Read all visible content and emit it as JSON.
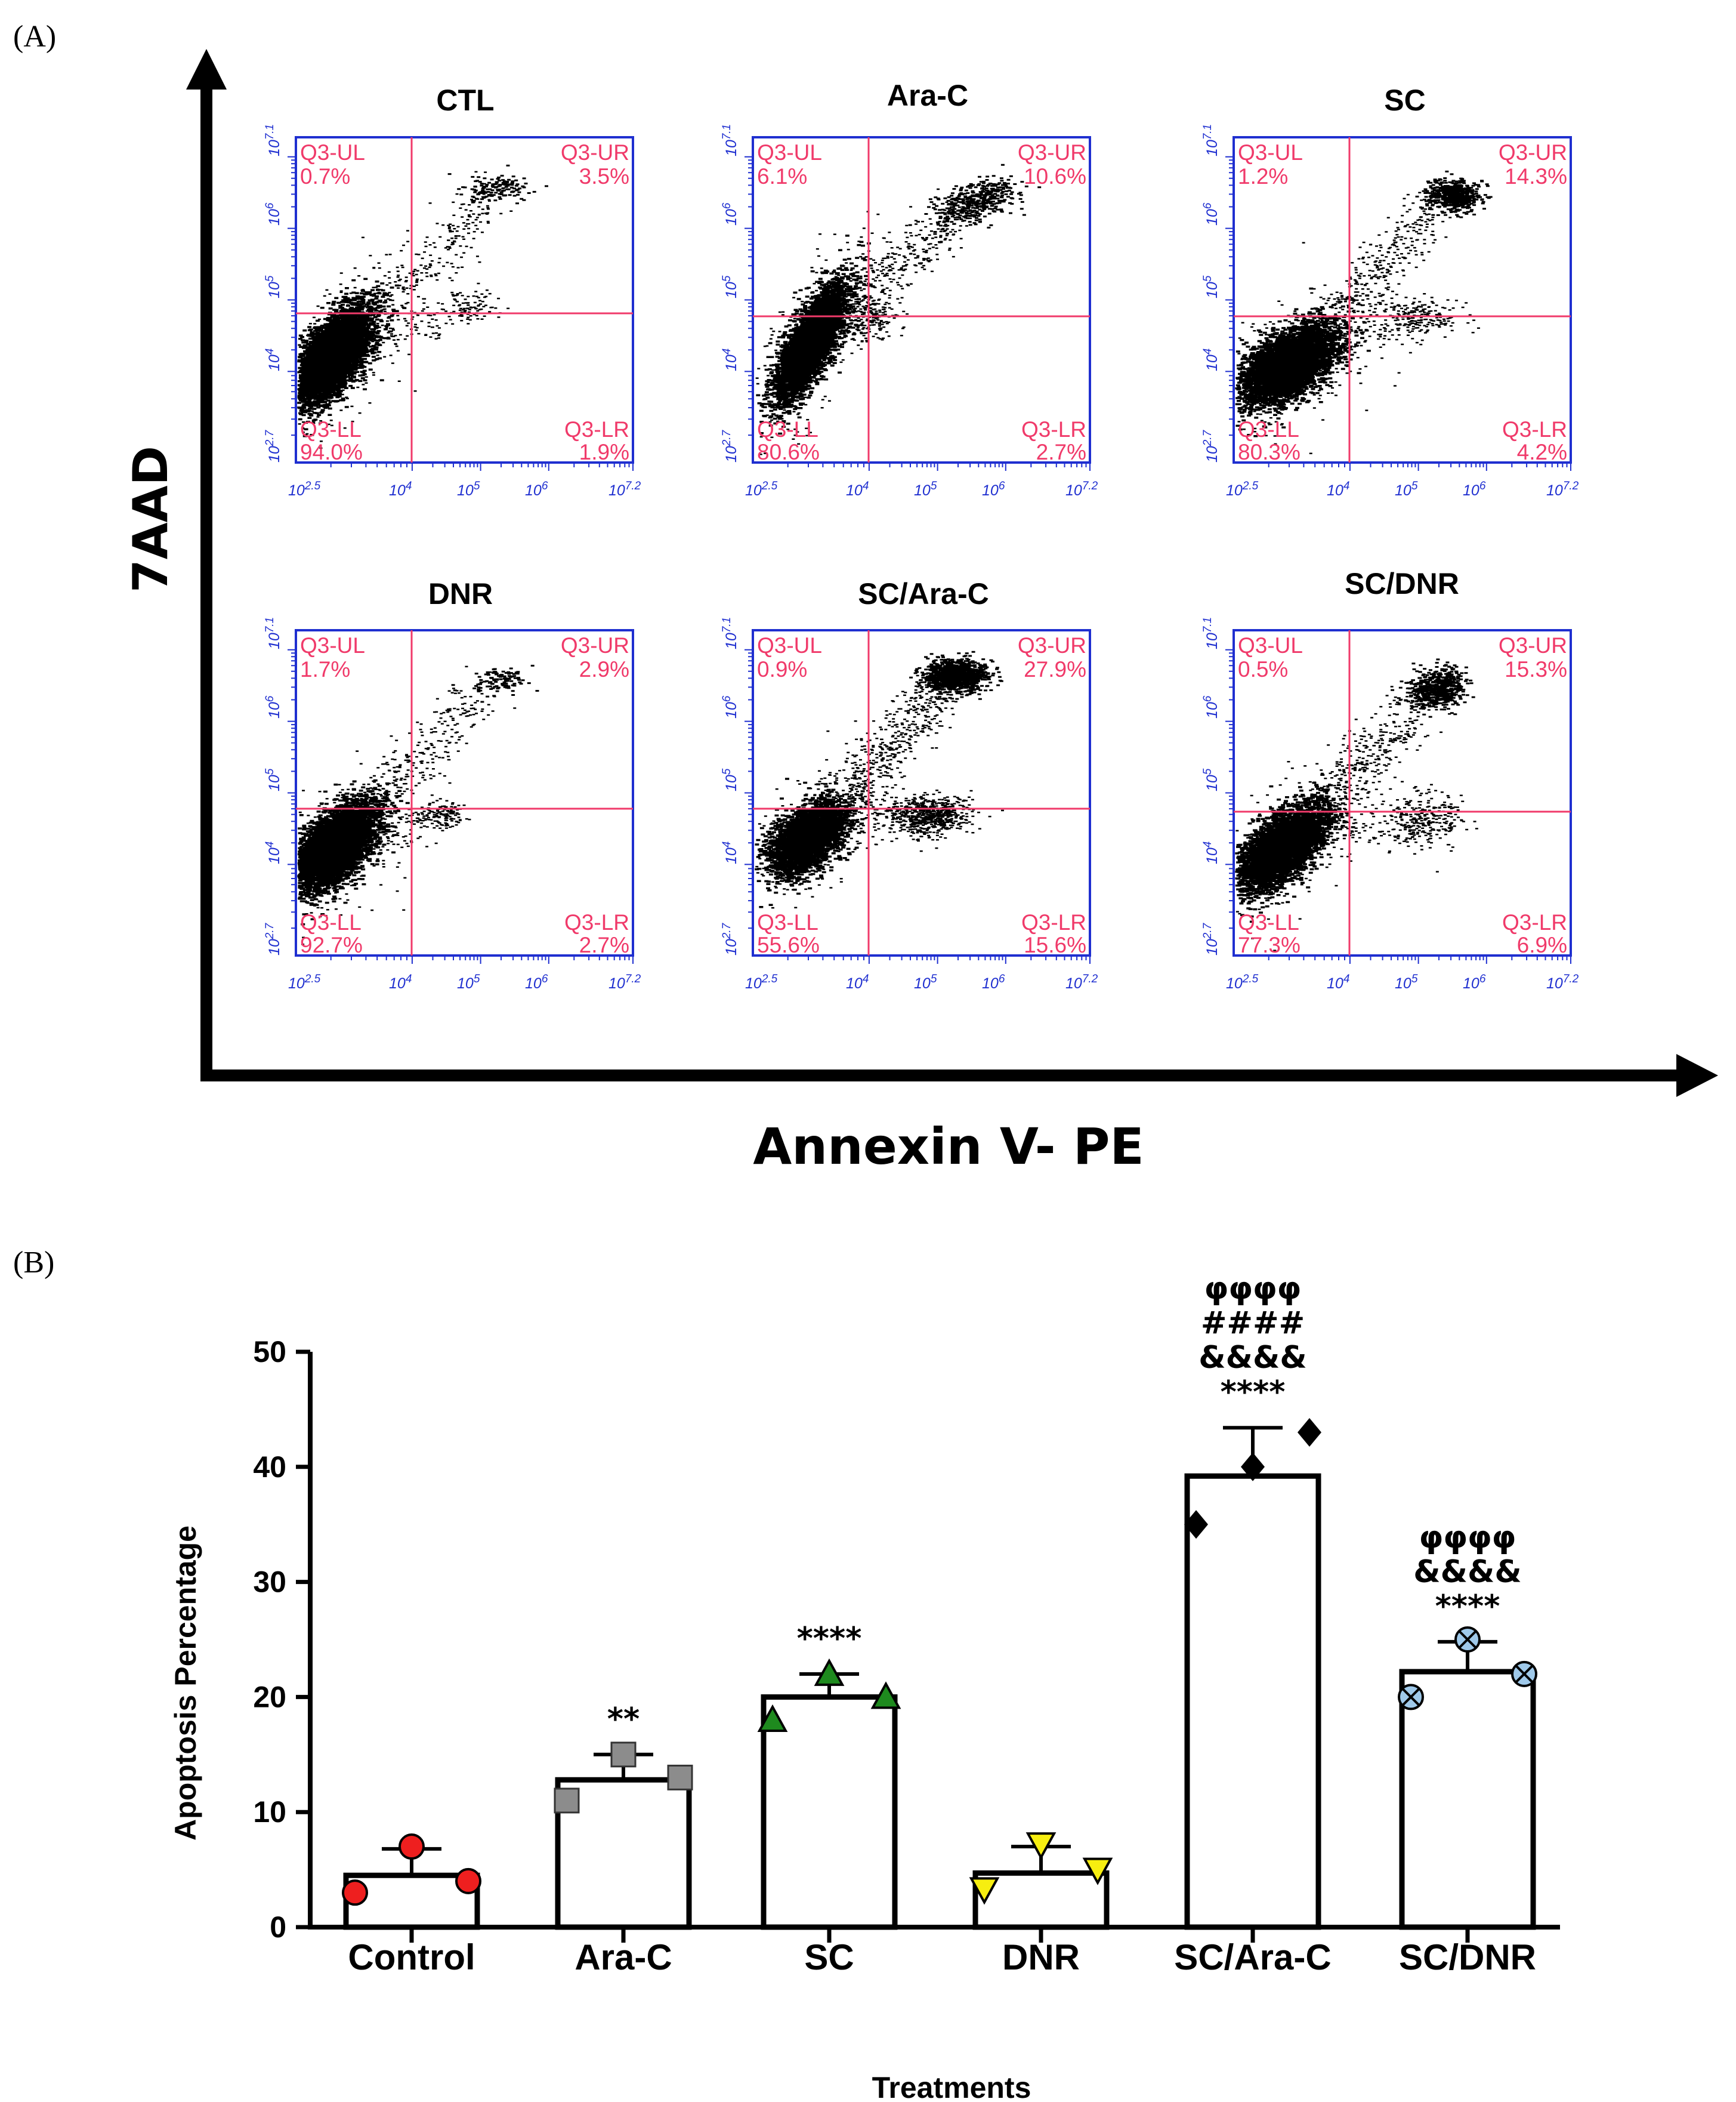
{
  "chart_data": [
    {
      "type": "scatter",
      "panel_label": "(A)",
      "ylabel": "7AAD",
      "xlabel": "Annexin V- PE",
      "axis_ticks": {
        "x": [
          "10^2.5",
          "10^4",
          "10^5",
          "10^6",
          "10^7.2"
        ],
        "y": [
          "10^2.7",
          "10^4",
          "10^5",
          "10^6",
          "10^7.1"
        ]
      },
      "tick_text": {
        "x_base": [
          "10",
          "10",
          "10",
          "10",
          "10"
        ],
        "x_exp": [
          "2.5",
          "4",
          "5",
          "6",
          "7.2"
        ],
        "y_base": [
          "10",
          "10",
          "10",
          "10",
          "10"
        ],
        "y_exp": [
          "2.7",
          "4",
          "5",
          "6",
          "7.1"
        ]
      },
      "plots": [
        {
          "title": "CTL",
          "ul": "Q3-UL",
          "ul_pct": "0.7%",
          "ur": "Q3-UR",
          "ur_pct": "3.5%",
          "ll": "Q3-LL",
          "ll_pct": "94.0%",
          "lr": "Q3-LR",
          "lr_pct": "1.9%"
        },
        {
          "title": "Ara-C",
          "ul": "Q3-UL",
          "ul_pct": "6.1%",
          "ur": "Q3-UR",
          "ur_pct": "10.6%",
          "ll": "Q3-LL",
          "ll_pct": "80.6%",
          "lr": "Q3-LR",
          "lr_pct": "2.7%"
        },
        {
          "title": "SC",
          "ul": "Q3-UL",
          "ul_pct": "1.2%",
          "ur": "Q3-UR",
          "ur_pct": "14.3%",
          "ll": "Q3-LL",
          "ll_pct": "80.3%",
          "lr": "Q3-LR",
          "lr_pct": "4.2%"
        },
        {
          "title": "DNR",
          "ul": "Q3-UL",
          "ul_pct": "1.7%",
          "ur": "Q3-UR",
          "ur_pct": "2.9%",
          "ll": "Q3-LL",
          "ll_pct": "92.7%",
          "lr": "Q3-LR",
          "lr_pct": "2.7%"
        },
        {
          "title": "SC/Ara-C",
          "ul": "Q3-UL",
          "ul_pct": "0.9%",
          "ur": "Q3-UR",
          "ur_pct": "27.9%",
          "ll": "Q3-LL",
          "ll_pct": "55.6%",
          "lr": "Q3-LR",
          "lr_pct": "15.6%"
        },
        {
          "title": "SC/DNR",
          "ul": "Q3-UL",
          "ul_pct": "0.5%",
          "ur": "Q3-UR",
          "ur_pct": "15.3%",
          "ll": "Q3-LL",
          "ll_pct": "77.3%",
          "lr": "Q3-LR",
          "lr_pct": "6.9%"
        }
      ]
    },
    {
      "type": "bar",
      "panel_label": "(B)",
      "xlabel": "Treatments",
      "ylabel": "Apoptosis  Percentage",
      "ylim": [
        0,
        50
      ],
      "yticks": [
        0,
        10,
        20,
        30,
        40,
        50
      ],
      "categories": [
        "Control",
        "Ara-C",
        "SC",
        "DNR",
        "SC/Ara-C",
        "SC/DNR"
      ],
      "values": [
        4.5,
        12.8,
        20.0,
        4.7,
        39.2,
        22.2
      ],
      "errors": [
        2.3,
        2.2,
        2.0,
        2.3,
        4.2,
        2.6
      ],
      "points": [
        [
          3,
          7,
          4
        ],
        [
          11,
          15,
          13
        ],
        [
          18,
          22,
          20
        ],
        [
          3.3,
          7.2,
          5
        ],
        [
          35,
          40,
          43
        ],
        [
          20,
          25,
          22
        ]
      ],
      "marker_colors": [
        "#ee1f1f",
        "#8c8c8c",
        "#1e8a1e",
        "#f7ee10",
        "#000000",
        "#9fc9ea"
      ],
      "markers": [
        "circle",
        "square",
        "triangle-up",
        "triangle-down",
        "diamond",
        "circle-x"
      ],
      "significance": [
        [],
        [
          "**"
        ],
        [
          "****"
        ],
        [],
        [
          "φφφφ",
          "####",
          "&&&&",
          "****"
        ],
        [
          "φφφφ",
          "&&&&",
          "****"
        ]
      ]
    }
  ]
}
